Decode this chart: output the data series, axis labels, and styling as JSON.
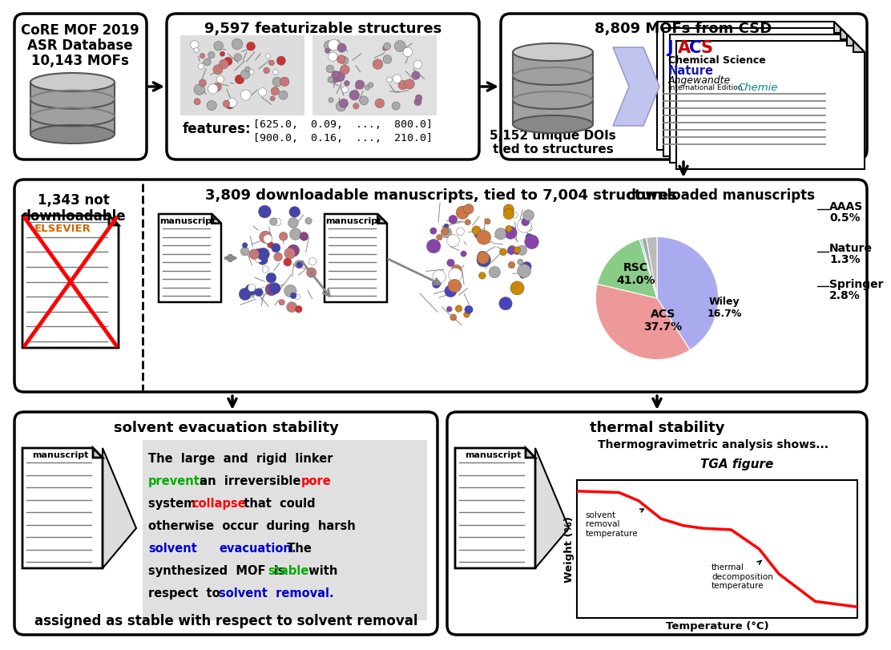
{
  "bg_color": "#ffffff",
  "box1_text": [
    "CoRE MOF 2019",
    "ASR Database",
    "10,143 MOFs"
  ],
  "box2_title": "9,597 featurizable structures",
  "box2_features_1": "[625.0,  0.09,  ...,  800.0]",
  "box2_features_2": "[900.0,  0.16,  ...,  210.0]",
  "box3_title": "8,809 MOFs from CSD",
  "box3_sub": "5,152 unique DOIs\ntied to structures",
  "row2_title": "3,809 downloadable manuscripts, tied to 7,004 structures",
  "row2_left_title": "1,343 not\ndownloadable",
  "row2_right_title": "downloaded manuscripts",
  "elsevier_text": "ELSEVIER",
  "pie_data": [
    41.0,
    37.7,
    16.7,
    0.5,
    1.3,
    2.8
  ],
  "pie_colors": [
    "#aaaaee",
    "#ee9999",
    "#88cc88",
    "#44cccc",
    "#aaaaaa",
    "#bbbbbb"
  ],
  "pie_label_RSC": "RSC\n41.0%",
  "pie_label_ACS": "ACS\n37.7%",
  "pie_label_Wiley": "Wiley\n16.7%",
  "pie_label_AAAS": "AAAS\n0.5%",
  "pie_label_Nature": "Nature\n1.3%",
  "pie_label_Springer": "Springer\n2.8%",
  "box4_title": "solvent evacuation stability",
  "box4_bottom": "assigned as stable with respect to solvent removal",
  "box5_title": "thermal stability",
  "tga_header": "Thermogravimetric analysis shows...",
  "tga_label": "TGA figure",
  "tga_xlabel": "Temperature (°C)",
  "tga_ylabel": "Weight (%)",
  "tga_annot1": "solvent\nremoval\ntemperature",
  "tga_annot2": "thermal\ndecomposition\ntemperature",
  "jacs_letters": [
    "J",
    "A",
    "C",
    "S"
  ],
  "jacs_colors": [
    "#0000cc",
    "#cc0000",
    "#0000cc",
    "#cc0000"
  ],
  "journal2": "Chemical Science",
  "journal3": "Nature",
  "journal4": "Angewandte",
  "journal5": "International Edition",
  "journal6": "Chemie"
}
